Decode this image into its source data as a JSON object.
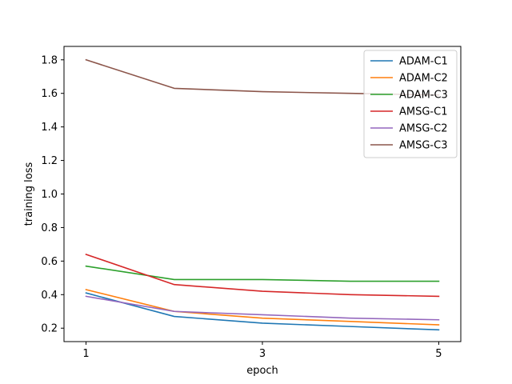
{
  "chart_data": {
    "type": "line",
    "xlabel": "epoch",
    "ylabel": "training loss",
    "x": [
      1,
      2,
      3,
      4,
      5
    ],
    "xticks": [
      1,
      3,
      5
    ],
    "xlim": [
      0.75,
      5.25
    ],
    "yticks": [
      0.2,
      0.4,
      0.6,
      0.8,
      1.0,
      1.2,
      1.4,
      1.6,
      1.8
    ],
    "yticklabels": [
      "0.2",
      "0.4",
      "0.6",
      "0.8",
      "1.0",
      "1.2",
      "1.4",
      "1.6",
      "1.8"
    ],
    "ylim": [
      0.12,
      1.88
    ],
    "grid": false,
    "legend_position": "top-right",
    "series": [
      {
        "name": "ADAM-C1",
        "color": "#1f77b4",
        "values": [
          0.41,
          0.27,
          0.23,
          0.21,
          0.19
        ]
      },
      {
        "name": "ADAM-C2",
        "color": "#ff7f0e",
        "values": [
          0.43,
          0.3,
          0.26,
          0.24,
          0.22
        ]
      },
      {
        "name": "ADAM-C3",
        "color": "#2ca02c",
        "values": [
          0.57,
          0.49,
          0.49,
          0.48,
          0.48
        ]
      },
      {
        "name": "AMSG-C1",
        "color": "#d62728",
        "values": [
          0.64,
          0.46,
          0.42,
          0.4,
          0.39
        ]
      },
      {
        "name": "AMSG-C2",
        "color": "#9467bd",
        "values": [
          0.39,
          0.3,
          0.28,
          0.26,
          0.25
        ]
      },
      {
        "name": "AMSG-C3",
        "color": "#8c564b",
        "values": [
          1.8,
          1.63,
          1.61,
          1.6,
          1.59
        ]
      }
    ]
  }
}
